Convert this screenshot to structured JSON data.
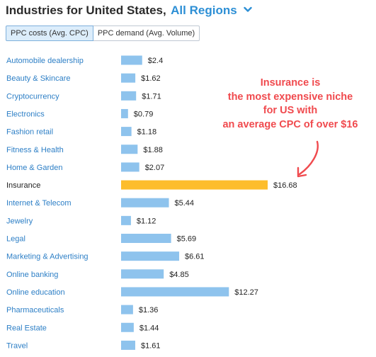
{
  "header": {
    "title": "Industries for United States,",
    "region_link": "All Regions",
    "region_icon": "chevron-down-icon"
  },
  "tabs": [
    {
      "label": "PPC costs (Avg. CPC)",
      "active": true
    },
    {
      "label": "PPC demand (Avg. Volume)",
      "active": false
    }
  ],
  "annotation": {
    "lines": [
      "Insurance is",
      "the most expensive niche",
      "for US with",
      "an average CPC of over $16"
    ],
    "color": "#f04a4e"
  },
  "chart_data": {
    "type": "bar",
    "orientation": "horizontal",
    "categories": [
      "Automobile dealership",
      "Beauty & Skincare",
      "Cryptocurrency",
      "Electronics",
      "Fashion retail",
      "Fitness & Health",
      "Home & Garden",
      "Insurance",
      "Internet & Telecom",
      "Jewelry",
      "Legal",
      "Marketing & Advertising",
      "Online banking",
      "Online education",
      "Pharmaceuticals",
      "Real Estate",
      "Travel"
    ],
    "values": [
      2.4,
      1.62,
      1.71,
      0.79,
      1.18,
      1.88,
      2.07,
      16.68,
      5.44,
      1.12,
      5.69,
      6.61,
      4.85,
      12.27,
      1.36,
      1.44,
      1.61
    ],
    "value_labels": [
      "$2.4",
      "$1.62",
      "$1.71",
      "$0.79",
      "$1.18",
      "$1.88",
      "$2.07",
      "$16.68",
      "$5.44",
      "$1.12",
      "$5.69",
      "$6.61",
      "$4.85",
      "$12.27",
      "$1.36",
      "$1.44",
      "$1.61"
    ],
    "highlight_category": "Insurance",
    "colors": {
      "bar": "#8ec3ed",
      "highlight": "#fdbd2c",
      "category_label": "#2d7fc6",
      "highlight_label": "#222222"
    },
    "grid": false,
    "legend": "none"
  }
}
